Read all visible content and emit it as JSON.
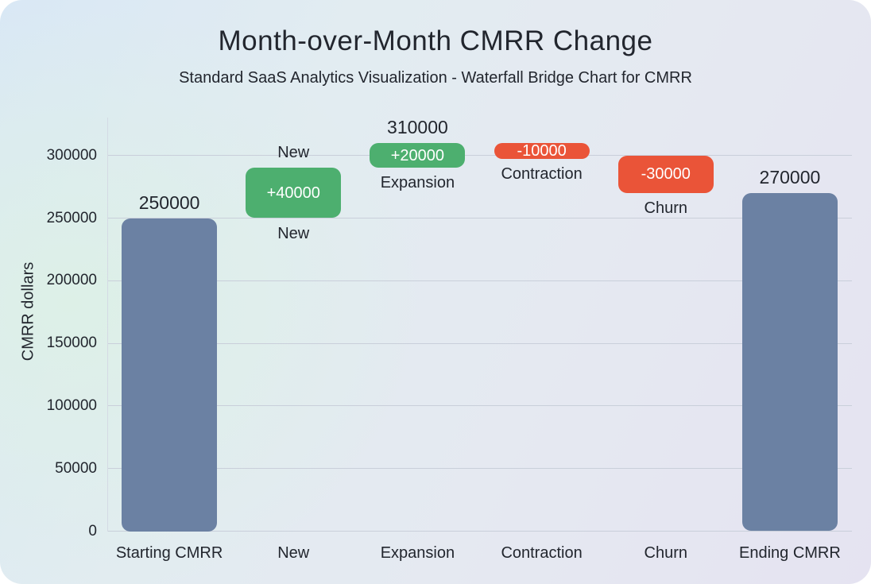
{
  "header": {
    "title": "Month-over-Month CMRR Change",
    "subtitle": "Standard SaaS Analytics Visualization - Waterfall Bridge Chart for CMRR"
  },
  "chart_data": {
    "type": "waterfall",
    "title": "Month-over-Month CMRR Change",
    "subtitle": "Standard SaaS Analytics Visualization - Waterfall Bridge Chart for CMRR",
    "xlabel": "",
    "ylabel": "CMRR dollars",
    "yticks": [
      0,
      50000,
      100000,
      150000,
      200000,
      250000,
      300000
    ],
    "ylim": [
      0,
      330000
    ],
    "grid": true,
    "legend": false,
    "categories": [
      "Starting CMRR",
      "New",
      "Expansion",
      "Contraction",
      "Churn",
      "Ending CMRR"
    ],
    "steps": [
      {
        "name": "Starting CMRR",
        "kind": "total",
        "start": 0,
        "end": 250000,
        "delta": null,
        "delta_label": "",
        "value_label_above": "250000",
        "name_label_above": "",
        "name_label_below": ""
      },
      {
        "name": "New",
        "kind": "increase",
        "start": 250000,
        "end": 290000,
        "delta": 40000,
        "delta_label": "+40000",
        "value_label_above": "",
        "name_label_above": "New",
        "name_label_below": "New"
      },
      {
        "name": "Expansion",
        "kind": "increase",
        "start": 290000,
        "end": 310000,
        "delta": 20000,
        "delta_label": "+20000",
        "value_label_above": "310000",
        "name_label_above": "",
        "name_label_below": "Expansion"
      },
      {
        "name": "Contraction",
        "kind": "decrease",
        "start": 310000,
        "end": 300000,
        "delta": -10000,
        "delta_label": "-10000",
        "value_label_above": "",
        "name_label_above": "",
        "name_label_below": "Contraction"
      },
      {
        "name": "Churn",
        "kind": "decrease",
        "start": 300000,
        "end": 270000,
        "delta": -30000,
        "delta_label": "-30000",
        "value_label_above": "",
        "name_label_above": "",
        "name_label_below": "Churn"
      },
      {
        "name": "Ending CMRR",
        "kind": "total",
        "start": 0,
        "end": 270000,
        "delta": null,
        "delta_label": "",
        "value_label_above": "270000",
        "name_label_above": "",
        "name_label_below": ""
      }
    ],
    "colors": {
      "total": "#6b81a3",
      "increase": "#4daf6f",
      "decrease": "#ea5438",
      "bar_text": "#ffffff",
      "text": "#22262e",
      "grid": "#c9cfda",
      "axis": "#d4dae4",
      "background_blue": "#d9e8f5",
      "background_mint": "#ddf0e7",
      "background_lavender": "#e5e3f1"
    }
  }
}
